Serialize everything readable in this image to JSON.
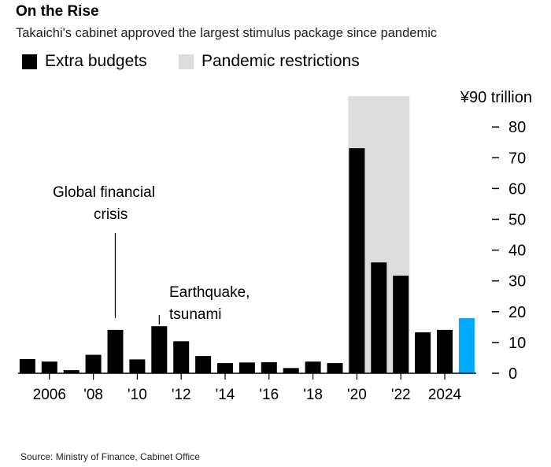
{
  "header": {
    "title": "On the Rise",
    "subtitle": "Takaichi's cabinet approved the largest stimulus package since pandemic"
  },
  "legend": [
    {
      "label": "Extra budgets",
      "color": "#000000"
    },
    {
      "label": "Pandemic restrictions",
      "color": "#dcdcdc"
    }
  ],
  "source": "Source: Ministry of Finance, Cabinet Office",
  "chart_data": {
    "type": "bar",
    "title": "On the Rise",
    "ylabel": "",
    "y_unit_label": "¥90 trillion",
    "ylim": [
      0,
      90
    ],
    "yticks": [
      0,
      10,
      20,
      30,
      40,
      50,
      60,
      70,
      80
    ],
    "x": [
      2005,
      2006,
      2007,
      2008,
      2009,
      2010,
      2011,
      2012,
      2013,
      2014,
      2015,
      2016,
      2017,
      2018,
      2019,
      2020,
      2021,
      2022,
      2023,
      2024,
      2025
    ],
    "xtick_labels": [
      {
        "year": 2006,
        "label": "2006"
      },
      {
        "year": 2008,
        "label": "'08"
      },
      {
        "year": 2010,
        "label": "'10"
      },
      {
        "year": 2012,
        "label": "'12"
      },
      {
        "year": 2014,
        "label": "'14"
      },
      {
        "year": 2016,
        "label": "'16"
      },
      {
        "year": 2018,
        "label": "'18"
      },
      {
        "year": 2020,
        "label": "'20"
      },
      {
        "year": 2022,
        "label": "'22"
      },
      {
        "year": 2024,
        "label": "2024"
      }
    ],
    "series": [
      {
        "name": "Extra budgets",
        "values": [
          4.6,
          3.8,
          1.0,
          6.0,
          14.1,
          4.5,
          15.3,
          10.4,
          5.6,
          3.3,
          3.5,
          3.6,
          1.7,
          3.8,
          3.3,
          73.1,
          36.0,
          31.7,
          13.3,
          14.1,
          17.9
        ]
      }
    ],
    "highlight": {
      "year": 2025,
      "color": "#00aaff"
    },
    "bar_color": "#000000",
    "shaded_range": {
      "label": "Pandemic restrictions",
      "from": 2020,
      "to": 2022,
      "color": "#dcdcdc"
    },
    "annotations": [
      {
        "year": 2009,
        "lines": [
          "Global financial",
          "crisis"
        ]
      },
      {
        "year": 2011,
        "lines": [
          "Earthquake,",
          "tsunami"
        ]
      }
    ],
    "grid": false,
    "legend_position": "top-left",
    "yaxis_position": "right"
  }
}
